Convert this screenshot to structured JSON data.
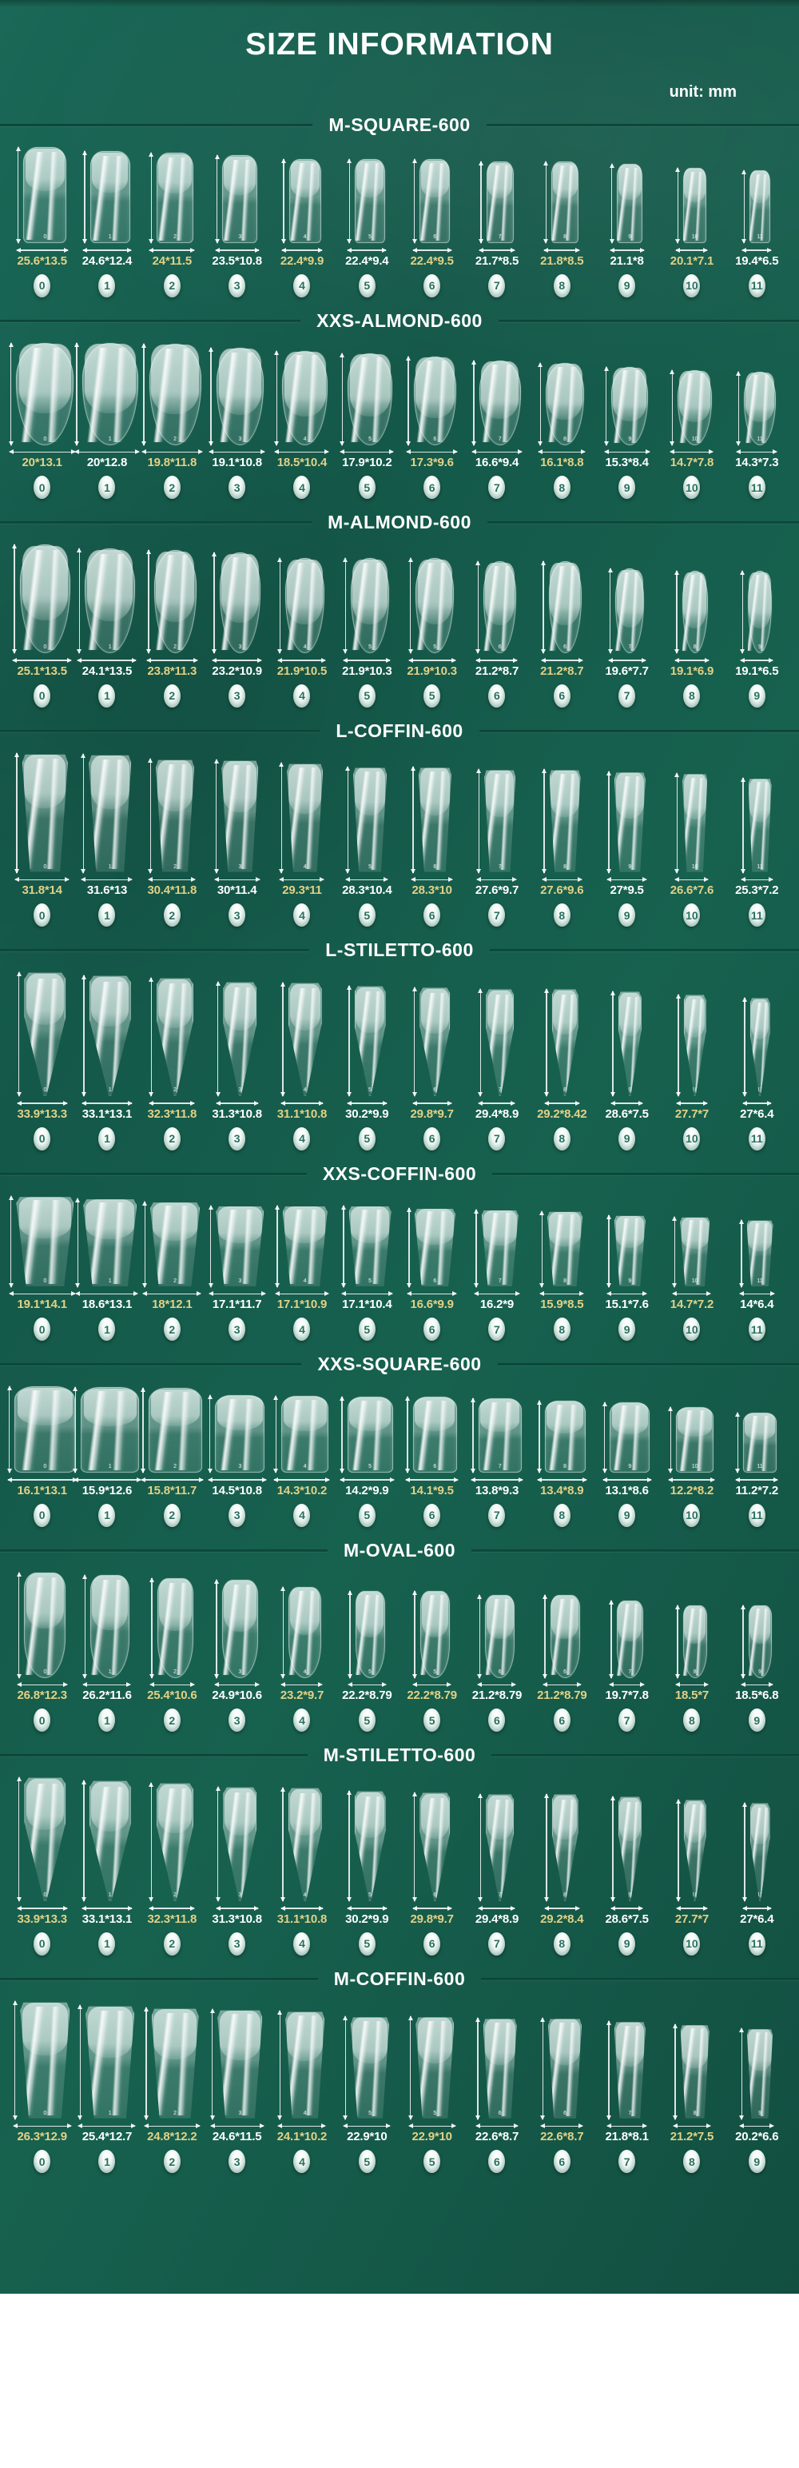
{
  "page": {
    "title": "SIZE INFORMATION",
    "unit_label": "unit: mm"
  },
  "colors": {
    "background_green": "#15604F",
    "accent_yellow": "#E2D186",
    "text_white": "#FFFFFF",
    "badge_number_teal": "#2B6F61",
    "divider_dark_green": "#0C4539"
  },
  "sections": [
    {
      "title": "M-SQUARE-600",
      "shape": "square",
      "items": [
        {
          "num": "0",
          "size": "25.6*13.5"
        },
        {
          "num": "1",
          "size": "24.6*12.4"
        },
        {
          "num": "2",
          "size": "24*11.5"
        },
        {
          "num": "3",
          "size": "23.5*10.8"
        },
        {
          "num": "4",
          "size": "22.4*9.9"
        },
        {
          "num": "5",
          "size": "22.4*9.4"
        },
        {
          "num": "6",
          "size": "22.4*9.5"
        },
        {
          "num": "7",
          "size": "21.7*8.5"
        },
        {
          "num": "8",
          "size": "21.8*8.5"
        },
        {
          "num": "9",
          "size": "21.1*8"
        },
        {
          "num": "10",
          "size": "20.1*7.1"
        },
        {
          "num": "11",
          "size": "19.4*6.5"
        }
      ]
    },
    {
      "title": "XXS-ALMOND-600",
      "shape": "almond",
      "items": [
        {
          "num": "0",
          "size": "20*13.1"
        },
        {
          "num": "1",
          "size": "20*12.8"
        },
        {
          "num": "2",
          "size": "19.8*11.8"
        },
        {
          "num": "3",
          "size": "19.1*10.8"
        },
        {
          "num": "4",
          "size": "18.5*10.4"
        },
        {
          "num": "5",
          "size": "17.9*10.2"
        },
        {
          "num": "6",
          "size": "17.3*9.6"
        },
        {
          "num": "7",
          "size": "16.6*9.4"
        },
        {
          "num": "8",
          "size": "16.1*8.8"
        },
        {
          "num": "9",
          "size": "15.3*8.4"
        },
        {
          "num": "10",
          "size": "14.7*7.8"
        },
        {
          "num": "11",
          "size": "14.3*7.3"
        }
      ]
    },
    {
      "title": "M-ALMOND-600",
      "shape": "almond",
      "items": [
        {
          "num": "0",
          "size": "25.1*13.5"
        },
        {
          "num": "1",
          "size": "24.1*13.5"
        },
        {
          "num": "2",
          "size": "23.8*11.3"
        },
        {
          "num": "3",
          "size": "23.2*10.9"
        },
        {
          "num": "4",
          "size": "21.9*10.5"
        },
        {
          "num": "5",
          "size": "21.9*10.3"
        },
        {
          "num": "5",
          "size": "21.9*10.3"
        },
        {
          "num": "6",
          "size": "21.2*8.7"
        },
        {
          "num": "6",
          "size": "21.2*8.7"
        },
        {
          "num": "7",
          "size": "19.6*7.7"
        },
        {
          "num": "8",
          "size": "19.1*6.9"
        },
        {
          "num": "9",
          "size": "19.1*6.5"
        }
      ]
    },
    {
      "title": "L-COFFIN-600",
      "shape": "coffin",
      "items": [
        {
          "num": "0",
          "size": "31.8*14"
        },
        {
          "num": "1",
          "size": "31.6*13"
        },
        {
          "num": "2",
          "size": "30.4*11.8"
        },
        {
          "num": "3",
          "size": "30*11.4"
        },
        {
          "num": "4",
          "size": "29.3*11"
        },
        {
          "num": "5",
          "size": "28.3*10.4"
        },
        {
          "num": "6",
          "size": "28.3*10"
        },
        {
          "num": "7",
          "size": "27.6*9.7"
        },
        {
          "num": "8",
          "size": "27.6*9.6"
        },
        {
          "num": "9",
          "size": "27*9.5"
        },
        {
          "num": "10",
          "size": "26.6*7.6"
        },
        {
          "num": "11",
          "size": "25.3*7.2"
        }
      ]
    },
    {
      "title": "L-STILETTO-600",
      "shape": "stiletto",
      "items": [
        {
          "num": "0",
          "size": "33.9*13.3"
        },
        {
          "num": "1",
          "size": "33.1*13.1"
        },
        {
          "num": "2",
          "size": "32.3*11.8"
        },
        {
          "num": "3",
          "size": "31.3*10.8"
        },
        {
          "num": "4",
          "size": "31.1*10.8"
        },
        {
          "num": "5",
          "size": "30.2*9.9"
        },
        {
          "num": "6",
          "size": "29.8*9.7"
        },
        {
          "num": "7",
          "size": "29.4*8.9"
        },
        {
          "num": "8",
          "size": "29.2*8.42"
        },
        {
          "num": "9",
          "size": "28.6*7.5"
        },
        {
          "num": "10",
          "size": "27.7*7"
        },
        {
          "num": "11",
          "size": "27*6.4"
        }
      ]
    },
    {
      "title": "XXS-COFFIN-600",
      "shape": "coffin",
      "items": [
        {
          "num": "0",
          "size": "19.1*14.1"
        },
        {
          "num": "1",
          "size": "18.6*13.1"
        },
        {
          "num": "2",
          "size": "18*12.1"
        },
        {
          "num": "3",
          "size": "17.1*11.7"
        },
        {
          "num": "4",
          "size": "17.1*10.9"
        },
        {
          "num": "5",
          "size": "17.1*10.4"
        },
        {
          "num": "6",
          "size": "16.6*9.9"
        },
        {
          "num": "7",
          "size": "16.2*9"
        },
        {
          "num": "8",
          "size": "15.9*8.5"
        },
        {
          "num": "9",
          "size": "15.1*7.6"
        },
        {
          "num": "10",
          "size": "14.7*7.2"
        },
        {
          "num": "11",
          "size": "14*6.4"
        }
      ]
    },
    {
      "title": "XXS-SQUARE-600",
      "shape": "square",
      "items": [
        {
          "num": "0",
          "size": "16.1*13.1"
        },
        {
          "num": "1",
          "size": "15.9*12.6"
        },
        {
          "num": "2",
          "size": "15.8*11.7"
        },
        {
          "num": "3",
          "size": "14.5*10.8"
        },
        {
          "num": "4",
          "size": "14.3*10.2"
        },
        {
          "num": "5",
          "size": "14.2*9.9"
        },
        {
          "num": "6",
          "size": "14.1*9.5"
        },
        {
          "num": "7",
          "size": "13.8*9.3"
        },
        {
          "num": "8",
          "size": "13.4*8.9"
        },
        {
          "num": "9",
          "size": "13.1*8.6"
        },
        {
          "num": "10",
          "size": "12.2*8.2"
        },
        {
          "num": "11",
          "size": "11.2*7.2"
        }
      ]
    },
    {
      "title": "M-OVAL-600",
      "shape": "oval",
      "items": [
        {
          "num": "0",
          "size": "26.8*12.3"
        },
        {
          "num": "1",
          "size": "26.2*11.6"
        },
        {
          "num": "2",
          "size": "25.4*10.6"
        },
        {
          "num": "3",
          "size": "24.9*10.6"
        },
        {
          "num": "4",
          "size": "23.2*9.7"
        },
        {
          "num": "5",
          "size": "22.2*8.79"
        },
        {
          "num": "5",
          "size": "22.2*8.79"
        },
        {
          "num": "6",
          "size": "21.2*8.79"
        },
        {
          "num": "6",
          "size": "21.2*8.79"
        },
        {
          "num": "7",
          "size": "19.7*7.8"
        },
        {
          "num": "8",
          "size": "18.5*7"
        },
        {
          "num": "9",
          "size": "18.5*6.8"
        }
      ]
    },
    {
      "title": "M-STILETTO-600",
      "shape": "stiletto",
      "items": [
        {
          "num": "0",
          "size": "33.9*13.3"
        },
        {
          "num": "1",
          "size": "33.1*13.1"
        },
        {
          "num": "2",
          "size": "32.3*11.8"
        },
        {
          "num": "3",
          "size": "31.3*10.8"
        },
        {
          "num": "4",
          "size": "31.1*10.8"
        },
        {
          "num": "5",
          "size": "30.2*9.9"
        },
        {
          "num": "6",
          "size": "29.8*9.7"
        },
        {
          "num": "7",
          "size": "29.4*8.9"
        },
        {
          "num": "8",
          "size": "29.2*8.4"
        },
        {
          "num": "9",
          "size": "28.6*7.5"
        },
        {
          "num": "10",
          "size": "27.7*7"
        },
        {
          "num": "11",
          "size": "27*6.4"
        }
      ]
    },
    {
      "title": "M-COFFIN-600",
      "shape": "coffin",
      "items": [
        {
          "num": "0",
          "size": "26.3*12.9"
        },
        {
          "num": "1",
          "size": "25.4*12.7"
        },
        {
          "num": "2",
          "size": "24.8*12.2"
        },
        {
          "num": "3",
          "size": "24.6*11.5"
        },
        {
          "num": "4",
          "size": "24.1*10.2"
        },
        {
          "num": "5",
          "size": "22.9*10"
        },
        {
          "num": "5",
          "size": "22.9*10"
        },
        {
          "num": "6",
          "size": "22.6*8.7"
        },
        {
          "num": "6",
          "size": "22.6*8.7"
        },
        {
          "num": "7",
          "size": "21.8*8.1"
        },
        {
          "num": "8",
          "size": "21.2*7.5"
        },
        {
          "num": "9",
          "size": "20.2*6.6"
        }
      ]
    }
  ]
}
